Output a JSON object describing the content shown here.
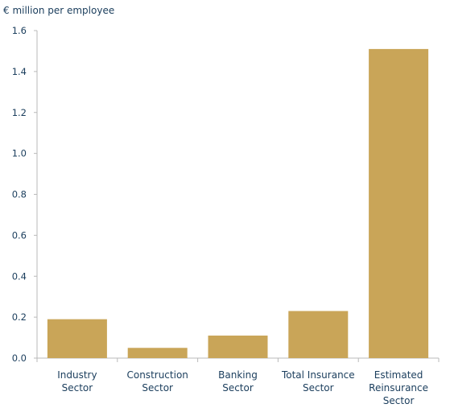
{
  "chart_data": {
    "type": "bar",
    "ylabel": "€ million per employee",
    "categories": [
      [
        "Industry",
        "Sector"
      ],
      [
        "Construction",
        "Sector"
      ],
      [
        "Banking",
        "Sector"
      ],
      [
        "Total Insurance",
        "Sector"
      ],
      [
        "Estimated",
        "Reinsurance",
        "Sector"
      ]
    ],
    "values": [
      0.19,
      0.05,
      0.11,
      0.23,
      1.51
    ],
    "ylim": [
      0,
      1.6
    ],
    "yticks": [
      "0.0",
      "0.2",
      "0.4",
      "0.6",
      "0.8",
      "1.0",
      "1.2",
      "1.4",
      "1.6"
    ],
    "bar_color": "#c9a558",
    "grid": false
  }
}
